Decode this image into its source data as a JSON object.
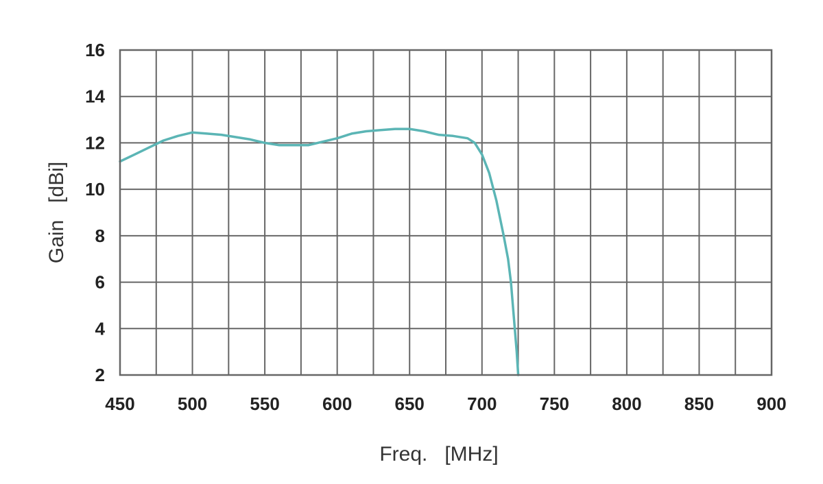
{
  "chart_data": {
    "type": "line",
    "title": "",
    "xlabel": "Freq.   [MHz]",
    "ylabel": "Gain   [dBi]",
    "xlim": [
      450,
      900
    ],
    "ylim": [
      2,
      16
    ],
    "x_ticks": [
      450,
      500,
      550,
      600,
      650,
      700,
      750,
      800,
      850,
      900
    ],
    "y_ticks": [
      2,
      4,
      6,
      8,
      10,
      12,
      14,
      16
    ],
    "x_gridlines": [
      450,
      475,
      500,
      525,
      550,
      575,
      600,
      625,
      650,
      675,
      700,
      725,
      750,
      775,
      800,
      825,
      850,
      875,
      900
    ],
    "y_gridlines": [
      2,
      4,
      6,
      8,
      10,
      12,
      14,
      16
    ],
    "grid": true,
    "legend": "none",
    "line_color": "#5bb5b5",
    "grid_color": "#666666",
    "series": [
      {
        "x": [
          450,
          460,
          470,
          480,
          490,
          500,
          510,
          520,
          530,
          540,
          550,
          560,
          570,
          580,
          590,
          600,
          610,
          620,
          630,
          640,
          650,
          660,
          670,
          680,
          690,
          695,
          700,
          705,
          710,
          715,
          718,
          720,
          722,
          724,
          725
        ],
        "y": [
          11.2,
          11.5,
          11.8,
          12.1,
          12.3,
          12.45,
          12.4,
          12.35,
          12.25,
          12.15,
          12.0,
          11.9,
          11.9,
          11.9,
          12.05,
          12.2,
          12.4,
          12.5,
          12.55,
          12.6,
          12.6,
          12.5,
          12.35,
          12.3,
          12.2,
          12.0,
          11.5,
          10.7,
          9.5,
          8.0,
          7.0,
          6.0,
          4.5,
          3.0,
          2.0
        ]
      }
    ]
  }
}
